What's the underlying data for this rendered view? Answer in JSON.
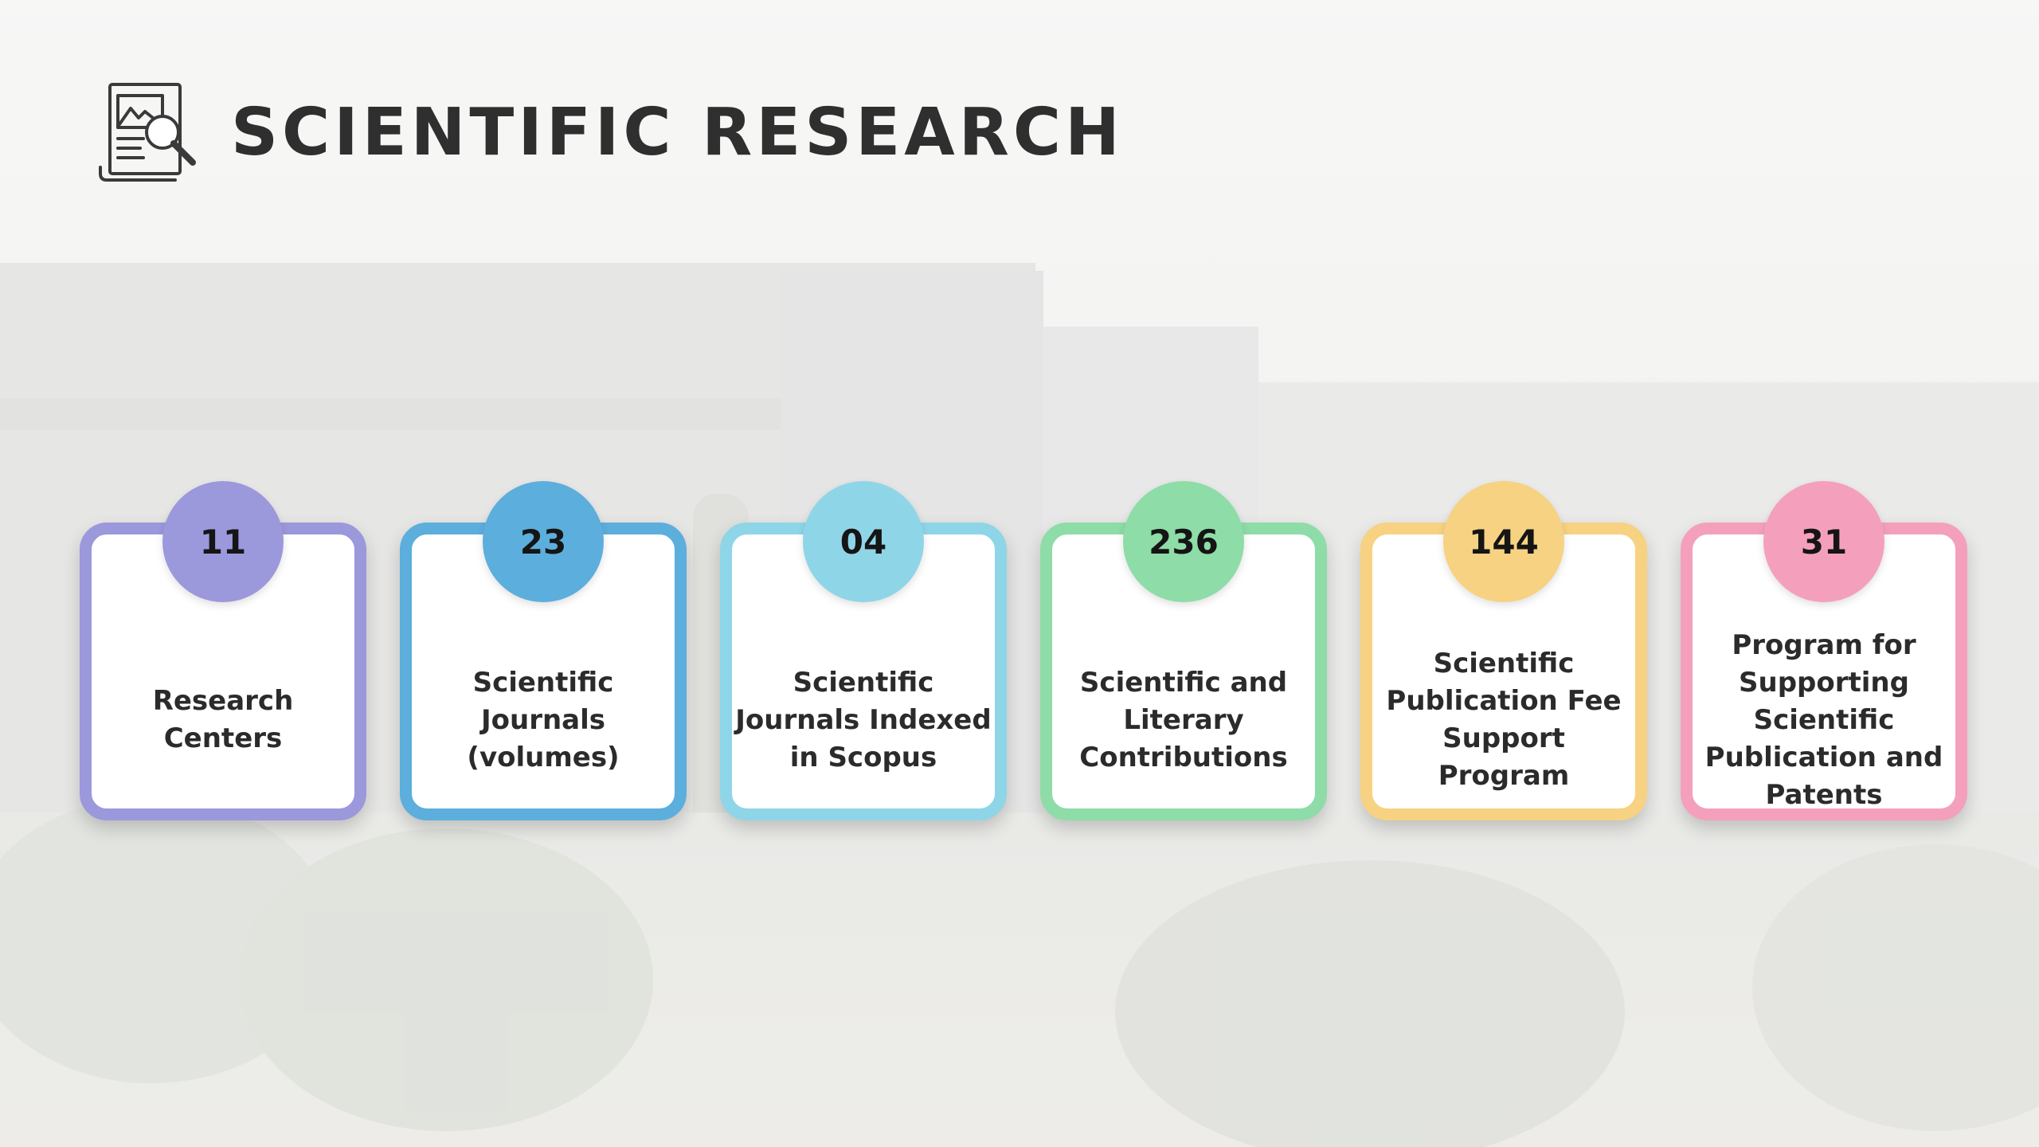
{
  "header": {
    "title": "SCIENTIFIC RESEARCH",
    "icon": "document-search-icon"
  },
  "stats": [
    {
      "value": "11",
      "label": "Research Centers",
      "color": "#9b98dc"
    },
    {
      "value": "23",
      "label": "Scientific Journals (volumes)",
      "color": "#5caedd"
    },
    {
      "value": "04",
      "label": "Scientific Journals Indexed in Scopus",
      "color": "#8fd5e8"
    },
    {
      "value": "236",
      "label": "Scientific and Literary Contributions",
      "color": "#8edca7"
    },
    {
      "value": "144",
      "label": "Scientific Publication Fee Support Program",
      "color": "#f6d282"
    },
    {
      "value": "31",
      "label": "Program for Supporting Scientific Publication and Patents",
      "color": "#f4a0bc"
    }
  ]
}
